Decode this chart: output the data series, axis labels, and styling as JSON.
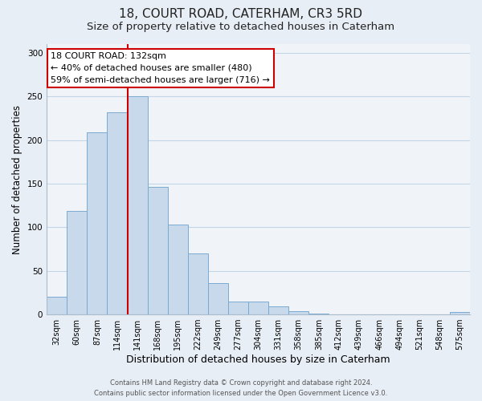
{
  "title": "18, COURT ROAD, CATERHAM, CR3 5RD",
  "subtitle": "Size of property relative to detached houses in Caterham",
  "xlabel": "Distribution of detached houses by size in Caterham",
  "ylabel": "Number of detached properties",
  "bin_labels": [
    "32sqm",
    "60sqm",
    "87sqm",
    "114sqm",
    "141sqm",
    "168sqm",
    "195sqm",
    "222sqm",
    "249sqm",
    "277sqm",
    "304sqm",
    "331sqm",
    "358sqm",
    "385sqm",
    "412sqm",
    "439sqm",
    "466sqm",
    "494sqm",
    "521sqm",
    "548sqm",
    "575sqm"
  ],
  "bar_heights": [
    20,
    119,
    209,
    232,
    250,
    146,
    103,
    70,
    36,
    15,
    15,
    9,
    4,
    1,
    0,
    0,
    0,
    0,
    0,
    0,
    3
  ],
  "bar_color": "#c9d9ec",
  "bar_edge_color": "#7aaad0",
  "vline_color": "#cc0000",
  "vline_x_index": 3.5,
  "annotation_line1": "18 COURT ROAD: 132sqm",
  "annotation_line2": "← 40% of detached houses are smaller (480)",
  "annotation_line3": "59% of semi-detached houses are larger (716) →",
  "annotation_box_color": "#cc0000",
  "annotation_bg": "#ffffff",
  "ylim": [
    0,
    310
  ],
  "yticks": [
    0,
    50,
    100,
    150,
    200,
    250,
    300
  ],
  "grid_color": "#c5d5e8",
  "bg_color": "#e8eef5",
  "plot_bg_color": "#f0f4f8",
  "footer_line1": "Contains HM Land Registry data © Crown copyright and database right 2024.",
  "footer_line2": "Contains public sector information licensed under the Open Government Licence v3.0.",
  "title_fontsize": 11,
  "subtitle_fontsize": 9.5,
  "xlabel_fontsize": 9,
  "ylabel_fontsize": 8.5,
  "tick_fontsize": 7,
  "annotation_fontsize": 8,
  "footer_fontsize": 6
}
